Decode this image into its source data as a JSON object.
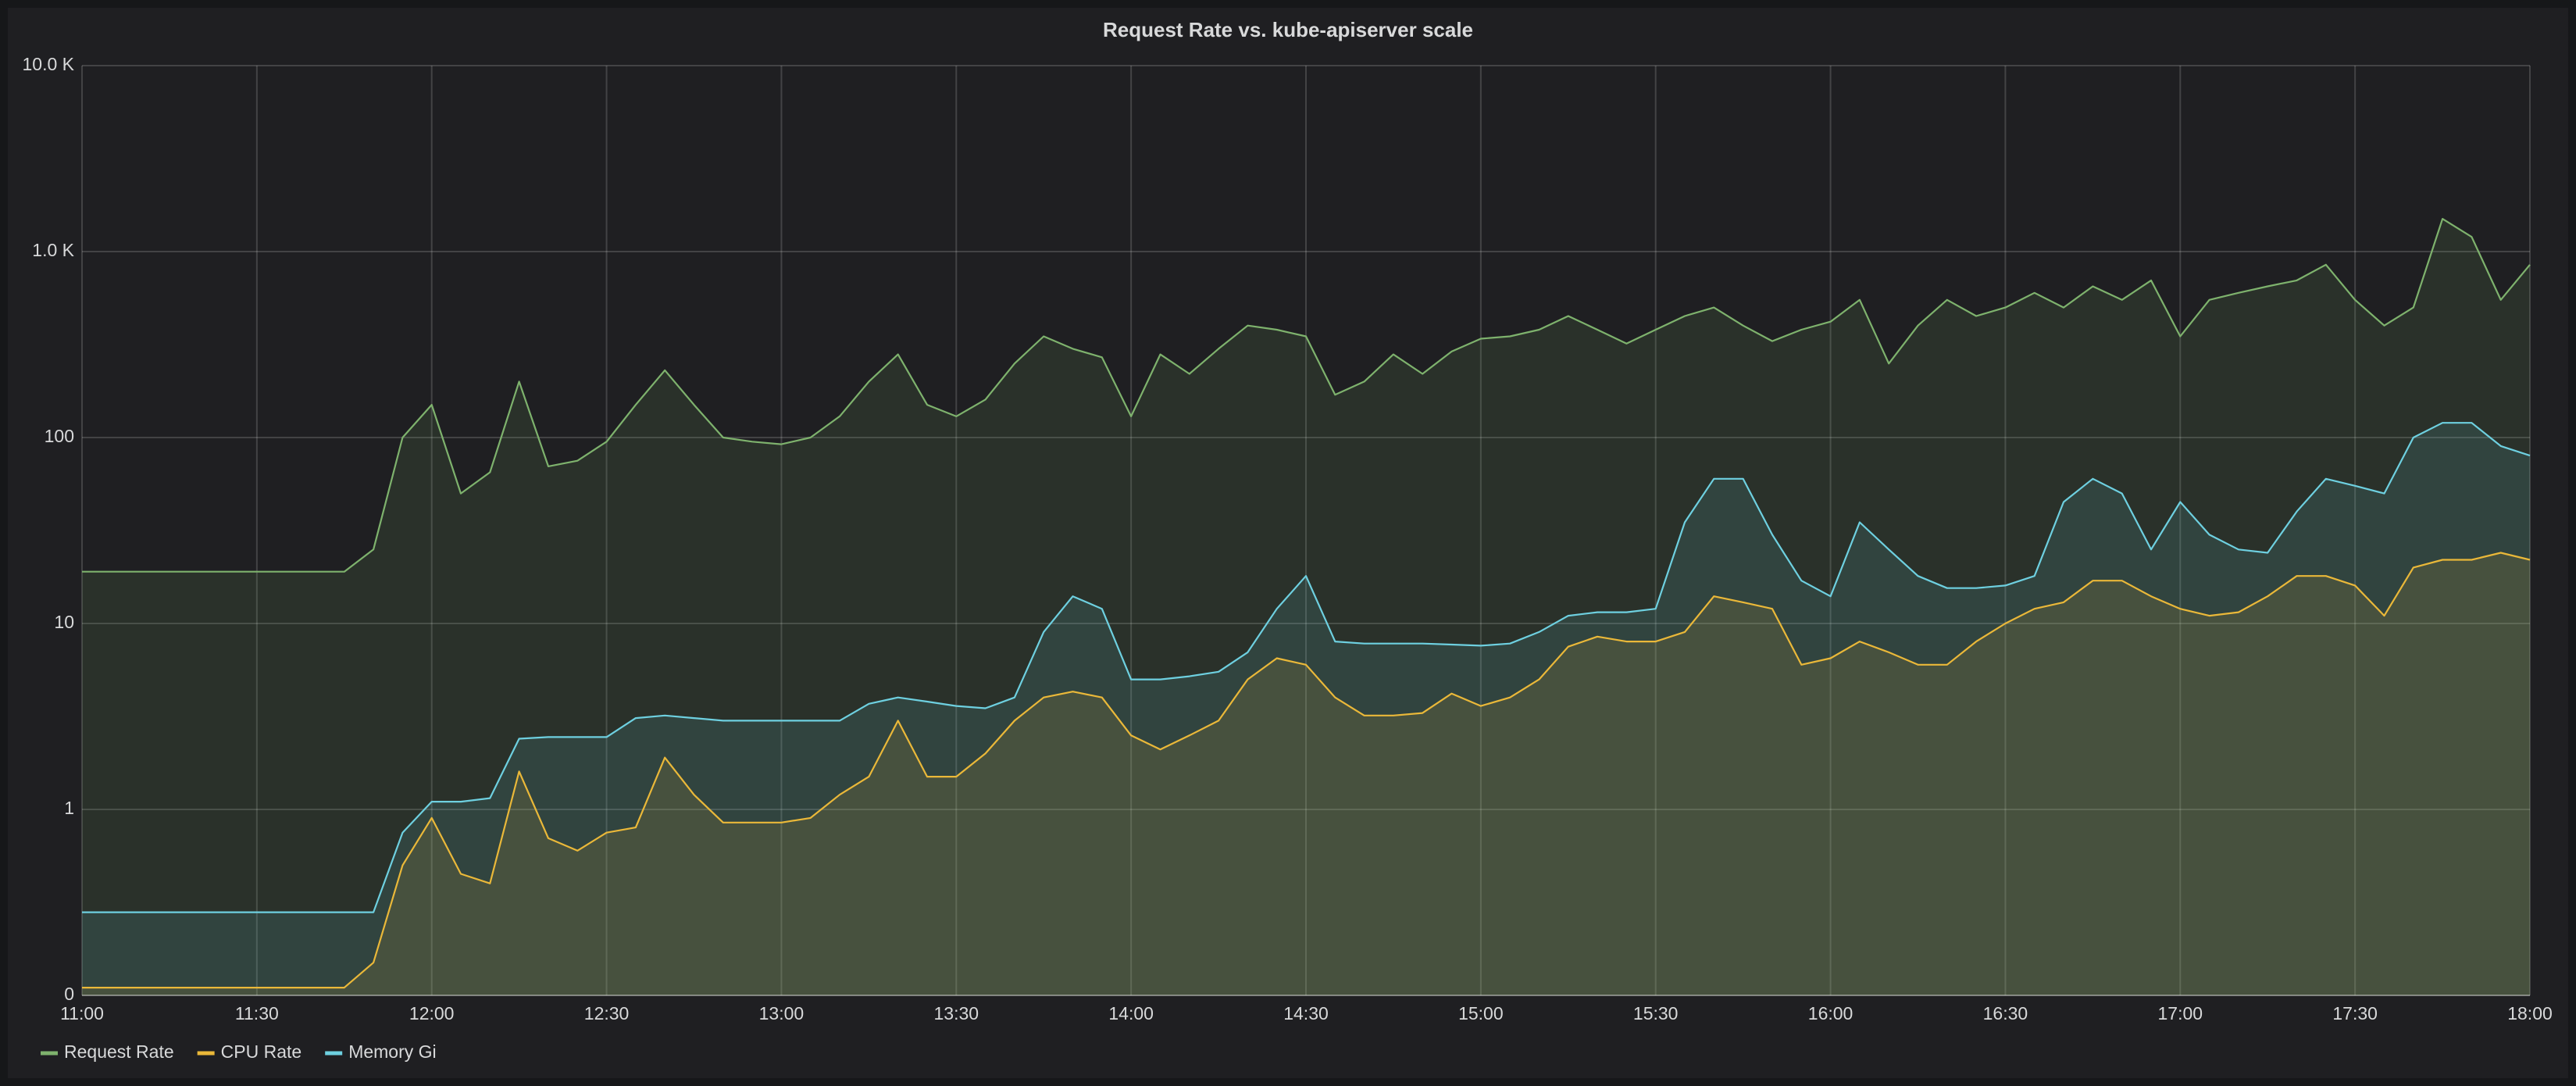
{
  "chart_data": {
    "type": "line",
    "title": "Request Rate vs. kube-apiserver scale",
    "log_scale": true,
    "grid": true,
    "fill": true,
    "legend": "bottom-left",
    "x": [
      "11:00",
      "11:05",
      "11:10",
      "11:15",
      "11:20",
      "11:25",
      "11:30",
      "11:35",
      "11:40",
      "11:45",
      "11:50",
      "11:55",
      "12:00",
      "12:05",
      "12:10",
      "12:15",
      "12:20",
      "12:25",
      "12:30",
      "12:35",
      "12:40",
      "12:45",
      "12:50",
      "12:55",
      "13:00",
      "13:05",
      "13:10",
      "13:15",
      "13:20",
      "13:25",
      "13:30",
      "13:35",
      "13:40",
      "13:45",
      "13:50",
      "13:55",
      "14:00",
      "14:05",
      "14:10",
      "14:15",
      "14:20",
      "14:25",
      "14:30",
      "14:35",
      "14:40",
      "14:45",
      "14:50",
      "14:55",
      "15:00",
      "15:05",
      "15:10",
      "15:15",
      "15:20",
      "15:25",
      "15:30",
      "15:35",
      "15:40",
      "15:45",
      "15:50",
      "15:55",
      "16:00",
      "16:05",
      "16:10",
      "16:15",
      "16:20",
      "16:25",
      "16:30",
      "16:35",
      "16:40",
      "16:45",
      "16:50",
      "16:55",
      "17:00",
      "17:05",
      "17:10",
      "17:15",
      "17:20",
      "17:25",
      "17:30",
      "17:35",
      "17:40",
      "17:45",
      "17:50",
      "17:55",
      "18:00"
    ],
    "xlim": [
      "11:00",
      "18:00"
    ],
    "xticks": [
      "11:00",
      "11:30",
      "12:00",
      "12:30",
      "13:00",
      "13:30",
      "14:00",
      "14:30",
      "15:00",
      "15:30",
      "16:00",
      "16:30",
      "17:00",
      "17:30",
      "18:00"
    ],
    "ylim": [
      0.1,
      10000
    ],
    "yticks": [
      {
        "value": 0.1,
        "label": "0"
      },
      1,
      10,
      100,
      {
        "value": 1000,
        "label": "1.0 K"
      },
      {
        "value": 10000,
        "label": "10.0 K"
      }
    ],
    "series": [
      {
        "name": "Request Rate",
        "color": "#7eb26d",
        "values": [
          19,
          19,
          19,
          19,
          19,
          19,
          19,
          19,
          19,
          19,
          25,
          100,
          150,
          50,
          65,
          200,
          70,
          75,
          95,
          150,
          230,
          150,
          100,
          95,
          92,
          100,
          130,
          200,
          280,
          150,
          130,
          160,
          250,
          350,
          300,
          270,
          130,
          280,
          220,
          300,
          400,
          380,
          350,
          170,
          200,
          280,
          220,
          290,
          340,
          350,
          380,
          450,
          380,
          320,
          380,
          450,
          500,
          400,
          330,
          380,
          420,
          550,
          250,
          400,
          550,
          450,
          500,
          600,
          500,
          650,
          550,
          700,
          350,
          550,
          600,
          650,
          700,
          850,
          550,
          400,
          500,
          1500,
          1200,
          550,
          850
        ]
      },
      {
        "name": "CPU Rate",
        "color": "#eab839",
        "values": [
          0.11,
          0.11,
          0.11,
          0.11,
          0.11,
          0.11,
          0.11,
          0.11,
          0.11,
          0.11,
          0.15,
          0.5,
          0.9,
          0.45,
          0.4,
          1.6,
          0.7,
          0.6,
          0.75,
          0.8,
          1.9,
          1.2,
          0.85,
          0.85,
          0.85,
          0.9,
          1.2,
          1.5,
          3,
          1.5,
          1.5,
          2,
          3,
          4,
          4.3,
          4,
          2.5,
          2.1,
          2.5,
          3,
          5,
          6.5,
          6,
          4,
          3.2,
          3.2,
          3.3,
          4.2,
          3.6,
          4,
          5,
          7.5,
          8.5,
          8,
          8,
          9,
          14,
          13,
          12,
          6,
          6.5,
          8,
          7,
          6,
          6,
          8,
          10,
          12,
          13,
          17,
          17,
          14,
          12,
          11,
          11.5,
          14,
          18,
          18,
          16,
          11,
          20,
          22,
          22,
          24,
          22
        ]
      },
      {
        "name": "Memory Gi",
        "color": "#6ed0e0",
        "values": [
          0.28,
          0.28,
          0.28,
          0.28,
          0.28,
          0.28,
          0.28,
          0.28,
          0.28,
          0.28,
          0.28,
          0.75,
          1.1,
          1.1,
          1.15,
          2.4,
          2.45,
          2.45,
          2.45,
          3.1,
          3.2,
          3.1,
          3,
          3,
          3,
          3,
          3,
          3.7,
          4,
          3.8,
          3.6,
          3.5,
          4,
          9,
          14,
          12,
          5,
          5,
          5.2,
          5.5,
          7,
          12,
          18,
          8,
          7.8,
          7.8,
          7.8,
          7.7,
          7.6,
          7.8,
          9,
          11,
          11.5,
          11.5,
          12,
          35,
          60,
          60,
          30,
          17,
          14,
          35,
          25,
          18,
          15.5,
          15.5,
          16,
          18,
          45,
          60,
          50,
          25,
          45,
          30,
          25,
          24,
          40,
          60,
          55,
          50,
          100,
          120,
          120,
          90,
          80
        ]
      }
    ]
  }
}
